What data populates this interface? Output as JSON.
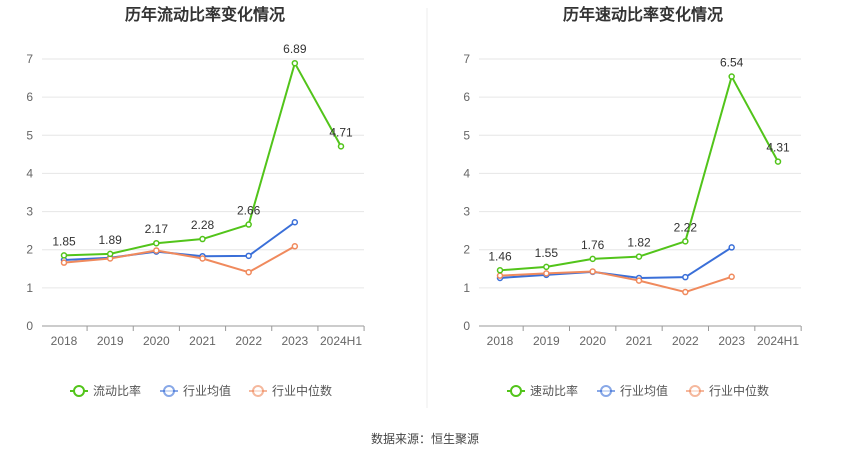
{
  "source_label": "数据来源：恒生聚源",
  "chart_data": [
    {
      "type": "line",
      "title": "历年流动比率变化情况",
      "categories": [
        "2018",
        "2019",
        "2020",
        "2021",
        "2022",
        "2023",
        "2024H1"
      ],
      "ylim": [
        0,
        7
      ],
      "yticks": [
        0,
        1,
        2,
        3,
        4,
        5,
        6,
        7
      ],
      "grid": true,
      "legend_position": "bottom",
      "series": [
        {
          "name": "流动比率",
          "color": "#52c41a",
          "values": [
            1.85,
            1.89,
            2.17,
            2.28,
            2.66,
            6.89,
            4.71
          ],
          "labels": [
            "1.85",
            "1.89",
            "2.17",
            "2.28",
            "2.66",
            "6.89",
            "4.71"
          ]
        },
        {
          "name": "行业均值",
          "color": "#3a6fd8",
          "values": [
            1.73,
            1.79,
            1.95,
            1.83,
            1.84,
            2.72,
            null
          ]
        },
        {
          "name": "行业中位数",
          "color": "#f08a5d",
          "values": [
            1.66,
            1.77,
            1.98,
            1.77,
            1.41,
            2.09,
            null
          ]
        }
      ]
    },
    {
      "type": "line",
      "title": "历年速动比率变化情况",
      "categories": [
        "2018",
        "2019",
        "2020",
        "2021",
        "2022",
        "2023",
        "2024H1"
      ],
      "ylim": [
        0,
        7
      ],
      "yticks": [
        0,
        1,
        2,
        3,
        4,
        5,
        6,
        7
      ],
      "grid": true,
      "legend_position": "bottom",
      "series": [
        {
          "name": "速动比率",
          "color": "#52c41a",
          "values": [
            1.46,
            1.55,
            1.76,
            1.82,
            2.22,
            6.54,
            4.31
          ],
          "labels": [
            "1.46",
            "1.55",
            "1.76",
            "1.82",
            "2.22",
            "6.54",
            "4.31"
          ]
        },
        {
          "name": "行业均值",
          "color": "#3a6fd8",
          "values": [
            1.26,
            1.34,
            1.42,
            1.26,
            1.28,
            2.06,
            null
          ]
        },
        {
          "name": "行业中位数",
          "color": "#f08a5d",
          "values": [
            1.32,
            1.38,
            1.43,
            1.19,
            0.89,
            1.29,
            null
          ]
        }
      ]
    }
  ]
}
